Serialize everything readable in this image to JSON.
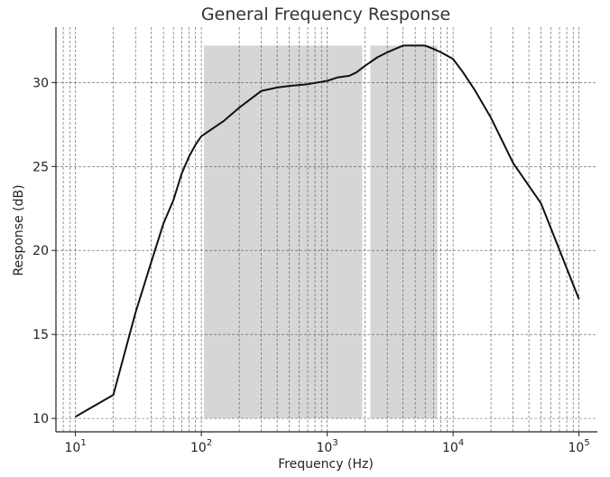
{
  "chart_data": {
    "type": "line",
    "title": "General Frequency Response",
    "xlabel": "Frequency (Hz)",
    "ylabel": "Response (dB)",
    "xscale": "log",
    "xlim": [
      7,
      140000
    ],
    "ylim": [
      9.2,
      33.3
    ],
    "grid": true,
    "grid_style": "dashed",
    "legend": "none",
    "line_color": "#111111",
    "band_color": "#d6d6d6",
    "x_ticks": [
      {
        "value": 10,
        "base": "10",
        "exp": "1"
      },
      {
        "value": 100,
        "base": "10",
        "exp": "2"
      },
      {
        "value": 1000,
        "base": "10",
        "exp": "3"
      },
      {
        "value": 10000,
        "base": "10",
        "exp": "4"
      },
      {
        "value": 100000,
        "base": "10",
        "exp": "5"
      }
    ],
    "y_ticks": [
      {
        "value": 10,
        "label": "10"
      },
      {
        "value": 15,
        "label": "15"
      },
      {
        "value": 20,
        "label": "20"
      },
      {
        "value": 25,
        "label": "25"
      },
      {
        "value": 30,
        "label": "30"
      }
    ],
    "shaded_bands": [
      {
        "x_start": 105,
        "x_end": 1900,
        "y_start": 10.0,
        "y_end": 32.2
      },
      {
        "x_start": 2200,
        "x_end": 7500,
        "y_start": 10.0,
        "y_end": 32.2
      }
    ],
    "series": [
      {
        "x": [
          10,
          20,
          30,
          40,
          50,
          60,
          70,
          80,
          90,
          100,
          150,
          200,
          300,
          400,
          500,
          700,
          1000,
          1200,
          1500,
          1700,
          2000,
          2500,
          3000,
          4000,
          5000,
          6000,
          7000,
          8000,
          10000,
          12000,
          15000,
          20000,
          30000,
          50000,
          100000
        ],
        "y": [
          10.1,
          11.4,
          16.3,
          19.3,
          21.6,
          23.0,
          24.6,
          25.6,
          26.3,
          26.8,
          27.7,
          28.5,
          29.5,
          29.7,
          29.8,
          29.9,
          30.1,
          30.3,
          30.4,
          30.6,
          31.0,
          31.5,
          31.8,
          32.2,
          32.2,
          32.2,
          32.0,
          31.8,
          31.4,
          30.6,
          29.5,
          27.9,
          25.2,
          22.8,
          17.1
        ]
      }
    ]
  }
}
